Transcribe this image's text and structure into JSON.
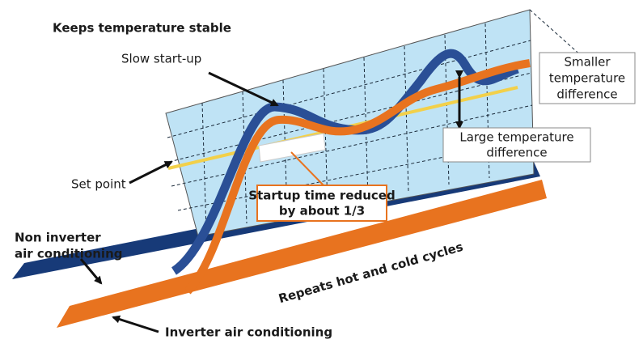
{
  "title": "Keeps temperature stable",
  "labels": {
    "slow_start": "Slow start-up",
    "set_point": "Set point",
    "repeats": "Repeats hot and cold cycles"
  },
  "boxes": {
    "smaller_difference": [
      "Smaller",
      "temperature",
      "difference"
    ],
    "large_difference": [
      "Large temperature",
      "difference"
    ],
    "startup_reduced": [
      "Startup time reduced",
      "by about 1/3"
    ]
  },
  "systems": {
    "non_inverter": [
      "Non inverter",
      "air conditioning"
    ],
    "inverter": [
      "Inverter air conditioning"
    ]
  }
}
